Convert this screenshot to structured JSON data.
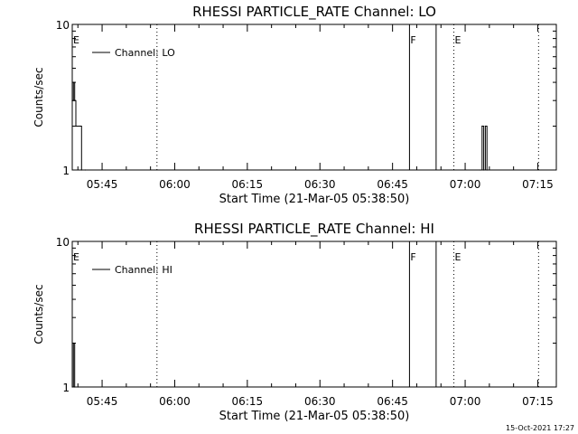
{
  "chart_data": [
    {
      "type": "line",
      "title": "RHESSI PARTICLE_RATE Channel: LO",
      "xlabel": "Start Time (21-Mar-05 05:38:50)",
      "ylabel": "Counts/sec",
      "yscale": "log",
      "ylim": [
        1,
        10
      ],
      "ytick_labels": [
        {
          "value": 1,
          "label": "1"
        },
        {
          "value": 10,
          "label": "10"
        }
      ],
      "xlim": [
        "05:38:50",
        "07:18:50"
      ],
      "xtick_labels": [
        "05:45",
        "06:00",
        "06:15",
        "06:30",
        "06:45",
        "07:00",
        "07:15"
      ],
      "legend": {
        "label": "Channel: LO",
        "position": "top-left"
      },
      "series": [
        {
          "name": "Channel: LO",
          "color": "#000000",
          "points": [
            [
              "05:38:50",
              3
            ],
            [
              "05:39:05",
              4
            ],
            [
              "05:39:20",
              3
            ],
            [
              "05:39:35",
              2
            ],
            [
              "05:40:30",
              2
            ],
            [
              "05:40:45",
              1
            ],
            [
              "05:41:30",
              1
            ],
            [
              "07:03:10",
              1
            ],
            [
              "07:03:30",
              2
            ],
            [
              "07:03:50",
              1
            ],
            [
              "07:04:10",
              2
            ],
            [
              "07:04:30",
              1
            ]
          ]
        }
      ],
      "solid_vlines": [
        "06:48:30",
        "06:54:00"
      ],
      "dotted_vlines": [
        "05:56:20",
        "06:57:40",
        "07:15:10"
      ],
      "markers": [
        {
          "label": "E",
          "at": "05:38:50"
        },
        {
          "label": "F",
          "at": "06:48:30"
        },
        {
          "label": "E",
          "at": "06:57:40"
        }
      ]
    },
    {
      "type": "line",
      "title": "RHESSI PARTICLE_RATE Channel: HI",
      "xlabel": "Start Time (21-Mar-05 05:38:50)",
      "ylabel": "Counts/sec",
      "yscale": "log",
      "ylim": [
        1,
        10
      ],
      "ytick_labels": [
        {
          "value": 1,
          "label": "1"
        },
        {
          "value": 10,
          "label": "10"
        }
      ],
      "xlim": [
        "05:38:50",
        "07:18:50"
      ],
      "xtick_labels": [
        "05:45",
        "06:00",
        "06:15",
        "06:30",
        "06:45",
        "07:00",
        "07:15"
      ],
      "legend": {
        "label": "Channel: HI",
        "position": "top-left"
      },
      "series": [
        {
          "name": "Channel: HI",
          "color": "#000000",
          "points": [
            [
              "05:38:50",
              1
            ],
            [
              "05:39:05",
              2
            ],
            [
              "05:39:20",
              1
            ],
            [
              "05:40:00",
              1
            ]
          ]
        }
      ],
      "solid_vlines": [
        "06:48:30",
        "06:54:00"
      ],
      "dotted_vlines": [
        "05:56:20",
        "06:57:40",
        "07:15:10"
      ],
      "markers": [
        {
          "label": "E",
          "at": "05:38:50"
        },
        {
          "label": "F",
          "at": "06:48:30"
        },
        {
          "label": "E",
          "at": "06:57:40"
        }
      ]
    }
  ],
  "footer": {
    "timestamp": "15-Oct-2021 17:27"
  }
}
